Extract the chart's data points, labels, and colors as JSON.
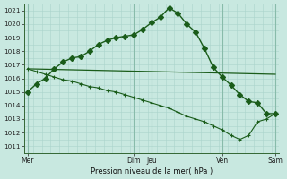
{
  "xlabel": "Pression niveau de la mer( hPa )",
  "background_color": "#c8e8e0",
  "grid_color_minor": "#aad4cc",
  "grid_color_major": "#88bbaa",
  "line_color": "#1a5c1a",
  "ylim": [
    1010.5,
    1021.5
  ],
  "yticks": [
    1011,
    1012,
    1013,
    1014,
    1015,
    1016,
    1017,
    1018,
    1019,
    1020,
    1021
  ],
  "xlim": [
    -0.2,
    14.2
  ],
  "xtick_labels": [
    "Mer",
    "Dim",
    "Jeu",
    "Ven",
    "Sam"
  ],
  "xtick_positions": [
    0,
    6,
    7,
    11,
    14
  ],
  "vlines_major": [
    0,
    6,
    7,
    11,
    14
  ],
  "vlines_minor_step": 0.5,
  "series1": {
    "x": [
      0,
      0.5,
      1,
      1.5,
      2,
      2.5,
      3,
      3.5,
      4,
      4.5,
      5,
      5.5,
      6,
      6.5,
      7,
      7.5,
      8,
      8.5,
      9,
      9.5,
      10,
      10.5,
      11,
      11.5,
      12,
      12.5,
      13,
      13.5,
      14
    ],
    "y": [
      1015.0,
      1015.6,
      1016.0,
      1016.7,
      1017.2,
      1017.5,
      1017.6,
      1018.0,
      1018.5,
      1018.8,
      1019.0,
      1019.1,
      1019.2,
      1019.6,
      1020.1,
      1020.5,
      1021.2,
      1020.8,
      1020.0,
      1019.4,
      1018.2,
      1016.8,
      1016.1,
      1015.5,
      1014.8,
      1014.3,
      1014.2,
      1013.4,
      1013.4
    ]
  },
  "series2": {
    "x": [
      0,
      14
    ],
    "y": [
      1016.7,
      1016.3
    ]
  },
  "series3": {
    "x": [
      0,
      0.5,
      1,
      1.5,
      2,
      2.5,
      3,
      3.5,
      4,
      4.5,
      5,
      5.5,
      6,
      6.5,
      7,
      7.5,
      8,
      8.5,
      9,
      9.5,
      10,
      10.5,
      11,
      11.5,
      12,
      12.5,
      13,
      13.5,
      14
    ],
    "y": [
      1016.7,
      1016.5,
      1016.3,
      1016.1,
      1015.9,
      1015.8,
      1015.6,
      1015.4,
      1015.3,
      1015.1,
      1015.0,
      1014.8,
      1014.6,
      1014.4,
      1014.2,
      1014.0,
      1013.8,
      1013.5,
      1013.2,
      1013.0,
      1012.8,
      1012.5,
      1012.2,
      1011.8,
      1011.5,
      1011.8,
      1012.8,
      1013.0,
      1013.4
    ]
  }
}
